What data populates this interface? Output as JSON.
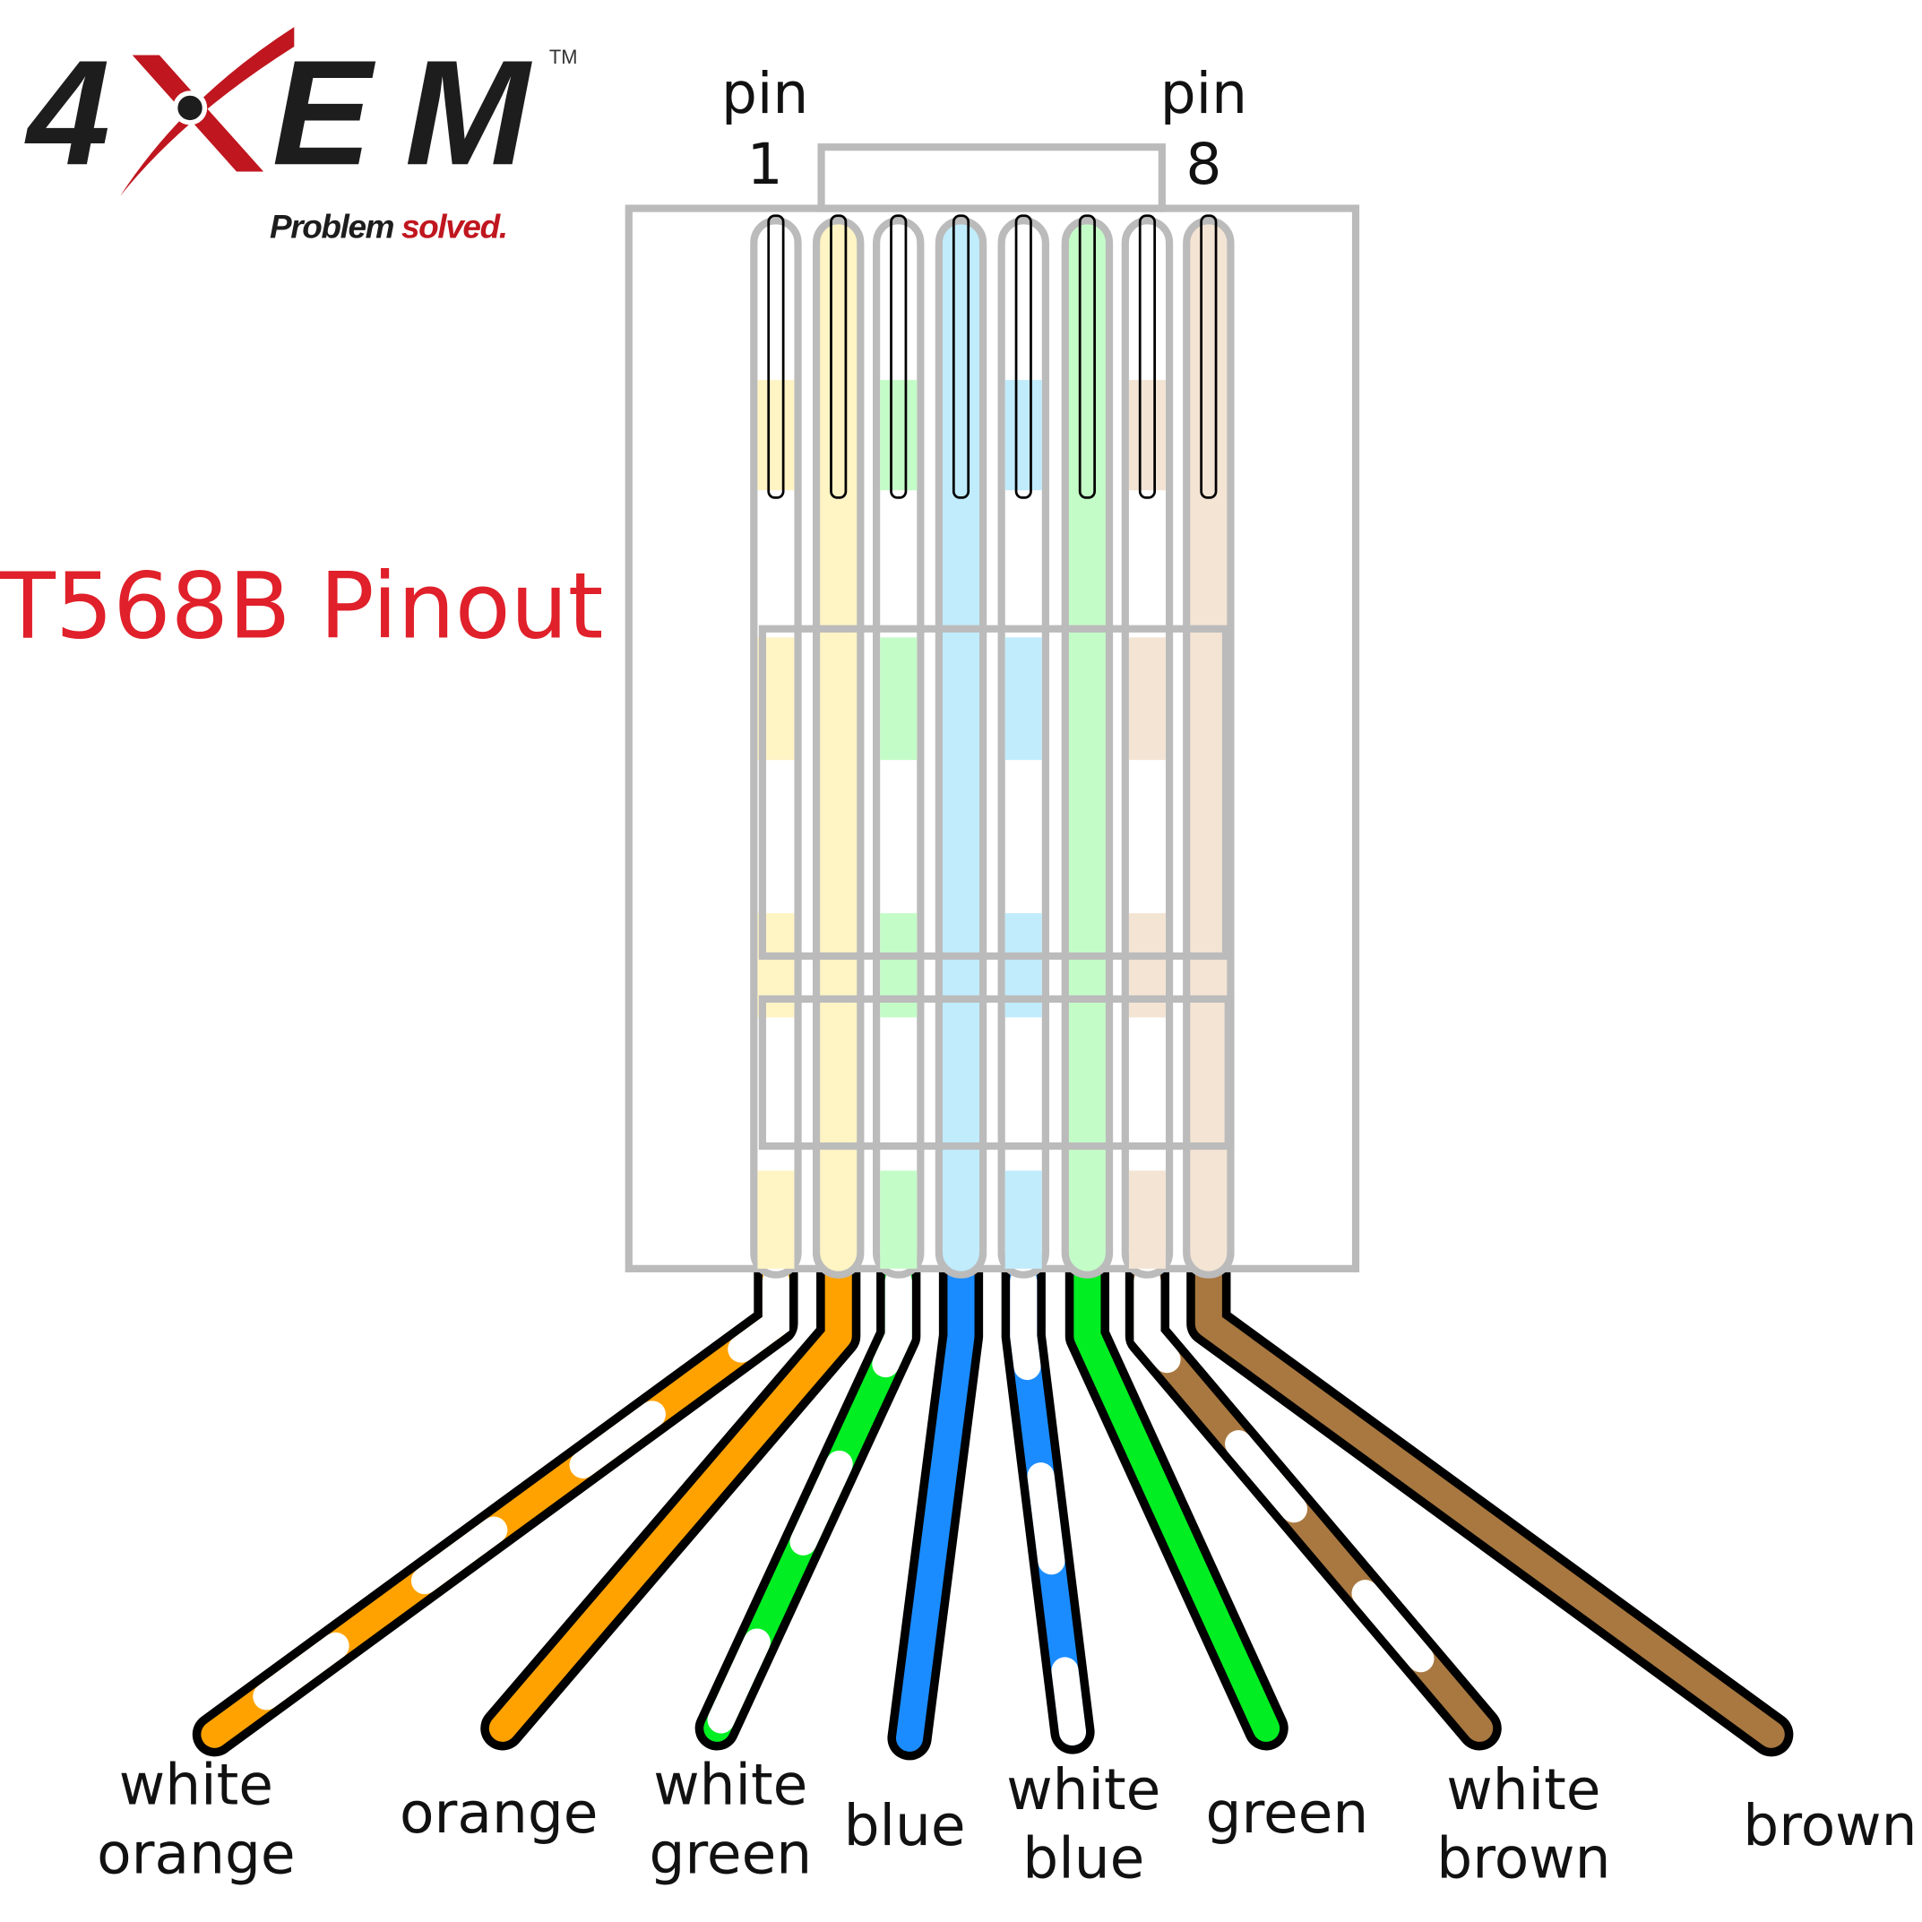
{
  "logo": {
    "brand": "4XEM",
    "trademark": "TM",
    "tagline_a": "Problem",
    "tagline_b": "solved.",
    "colors": {
      "dark": "#1d1d1d",
      "red": "#c0161f"
    }
  },
  "title": "T568B Pinout",
  "pin_labels": {
    "first_word": "pin",
    "first_num": "1",
    "last_word": "pin",
    "last_num": "8"
  },
  "wires": [
    {
      "pin": 1,
      "label_lines": [
        "white",
        "orange"
      ],
      "color": "#ffa200",
      "light": "#fff4c4",
      "striped": true
    },
    {
      "pin": 2,
      "label_lines": [
        "orange"
      ],
      "color": "#ffa200",
      "light": "#fff4c4",
      "striped": false
    },
    {
      "pin": 3,
      "label_lines": [
        "white",
        "green"
      ],
      "color": "#00ee22",
      "light": "#c4fcc8",
      "striped": true
    },
    {
      "pin": 4,
      "label_lines": [
        "blue"
      ],
      "color": "#1a8cff",
      "light": "#c0ecfc",
      "striped": false
    },
    {
      "pin": 5,
      "label_lines": [
        "white",
        "blue"
      ],
      "color": "#1a8cff",
      "light": "#c0ecfc",
      "striped": true
    },
    {
      "pin": 6,
      "label_lines": [
        "green"
      ],
      "color": "#00ee22",
      "light": "#c4fcc8",
      "striped": false
    },
    {
      "pin": 7,
      "label_lines": [
        "white",
        "brown"
      ],
      "color": "#a87840",
      "light": "#f4e4d4",
      "striped": true
    },
    {
      "pin": 8,
      "label_lines": [
        "brown"
      ],
      "color": "#a87840",
      "light": "#f4e4d4",
      "striped": false
    }
  ]
}
